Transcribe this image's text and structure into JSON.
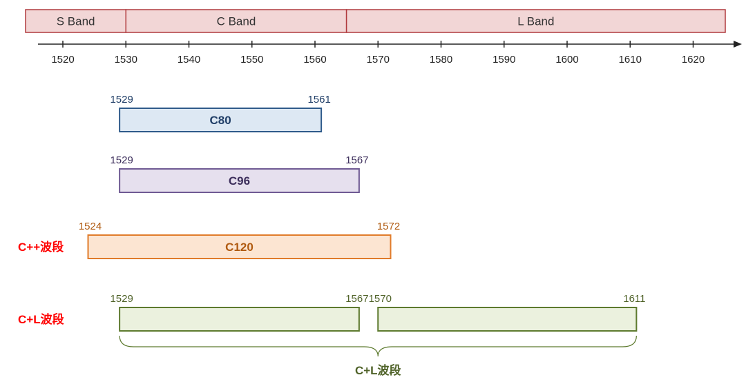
{
  "bands": [
    {
      "label": "S Band",
      "start": 1510,
      "end": 1530
    },
    {
      "label": "C Band",
      "start": 1530,
      "end": 1565
    },
    {
      "label": "L Band",
      "start": 1565,
      "end": 1625
    }
  ],
  "axis": {
    "min": 1513,
    "max": 1627,
    "ticks": [
      1520,
      1530,
      1540,
      1550,
      1560,
      1570,
      1580,
      1590,
      1600,
      1610,
      1620
    ]
  },
  "rows": [
    {
      "side_label": "",
      "segments": [
        {
          "label": "C80",
          "start": 1529,
          "end": 1561,
          "start_label": "1529",
          "end_label": "1561"
        }
      ]
    },
    {
      "side_label": "",
      "segments": [
        {
          "label": "C96",
          "start": 1529,
          "end": 1567,
          "start_label": "1529",
          "end_label": "1567"
        }
      ]
    },
    {
      "side_label": "C++波段",
      "segments": [
        {
          "label": "C120",
          "start": 1524,
          "end": 1572,
          "start_label": "1524",
          "end_label": "1572"
        }
      ]
    },
    {
      "side_label": "C+L波段",
      "segments": [
        {
          "label": "",
          "start": 1529,
          "end": 1567,
          "start_label": "1529",
          "end_label": "1567"
        },
        {
          "label": "",
          "start": 1570,
          "end": 1611,
          "start_label": "1570",
          "end_label": "1611"
        }
      ]
    }
  ],
  "brace": {
    "label": "C+L波段",
    "start": 1529,
    "end": 1611
  },
  "colors": {
    "band_fill": "#f2d6d6",
    "band_stroke": "#b03a3e",
    "axis": "#222222",
    "side_label": "#ff0000",
    "c80_fill": "#dde8f3",
    "c80_stroke": "#2e5a8a",
    "c80_text": "#1f3d66",
    "c96_fill": "#e6e0ee",
    "c96_stroke": "#6f5a93",
    "c96_text": "#3d2f5c",
    "c120_fill": "#fce5d2",
    "c120_stroke": "#e07b2a",
    "c120_text": "#b05a10",
    "cl_fill": "#ebf1de",
    "cl_stroke": "#5d7a2e",
    "cl_text": "#4f6228"
  }
}
